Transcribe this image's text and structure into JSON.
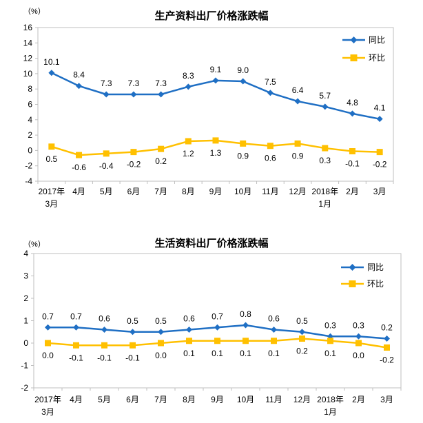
{
  "page": {
    "background": "#ffffff"
  },
  "colors": {
    "tongbi_blue": "#1f6fc4",
    "huanbi_yellow": "#ffc000",
    "axis_gray": "#bfbfbf",
    "label_black": "#000000"
  },
  "chart_data": [
    {
      "type": "line",
      "title": "生产资料出厂价格涨跌幅",
      "unit_label": "（%）",
      "categories": [
        "2017年\n3月",
        "4月",
        "5月",
        "6月",
        "7月",
        "8月",
        "9月",
        "10月",
        "11月",
        "12月",
        "2018年\n1月",
        "2月",
        "3月"
      ],
      "series": [
        {
          "name": "同比",
          "marker": "diamond",
          "color": "#1f6fc4",
          "label_position": "above",
          "values": [
            10.1,
            8.4,
            7.3,
            7.3,
            7.3,
            8.3,
            9.1,
            9.0,
            7.5,
            6.4,
            5.7,
            4.8,
            4.1
          ]
        },
        {
          "name": "环比",
          "marker": "square",
          "color": "#ffc000",
          "label_position": "below",
          "values": [
            0.5,
            -0.6,
            -0.4,
            -0.2,
            0.2,
            1.2,
            1.3,
            0.9,
            0.6,
            0.9,
            0.3,
            -0.1,
            -0.2
          ]
        }
      ],
      "ylim": [
        -4,
        16
      ],
      "ytick_step": 2,
      "legend_position": "top-right",
      "grid": false
    },
    {
      "type": "line",
      "title": "生活资料出厂价格涨跌幅",
      "unit_label": "（%）",
      "categories": [
        "2017年\n3月",
        "4月",
        "5月",
        "6月",
        "7月",
        "8月",
        "9月",
        "10月",
        "11月",
        "12月",
        "2018年\n1月",
        "2月",
        "3月"
      ],
      "series": [
        {
          "name": "同比",
          "marker": "diamond",
          "color": "#1f6fc4",
          "label_position": "above",
          "values": [
            0.7,
            0.7,
            0.6,
            0.5,
            0.5,
            0.6,
            0.7,
            0.8,
            0.6,
            0.5,
            0.3,
            0.3,
            0.2
          ]
        },
        {
          "name": "环比",
          "marker": "square",
          "color": "#ffc000",
          "label_position": "below",
          "values": [
            0.0,
            -0.1,
            -0.1,
            -0.1,
            0.0,
            0.1,
            0.1,
            0.1,
            0.1,
            0.2,
            0.1,
            0.0,
            -0.2
          ]
        }
      ],
      "ylim": [
        -2,
        4
      ],
      "ytick_step": 1,
      "legend_position": "top-right",
      "grid": false
    }
  ]
}
